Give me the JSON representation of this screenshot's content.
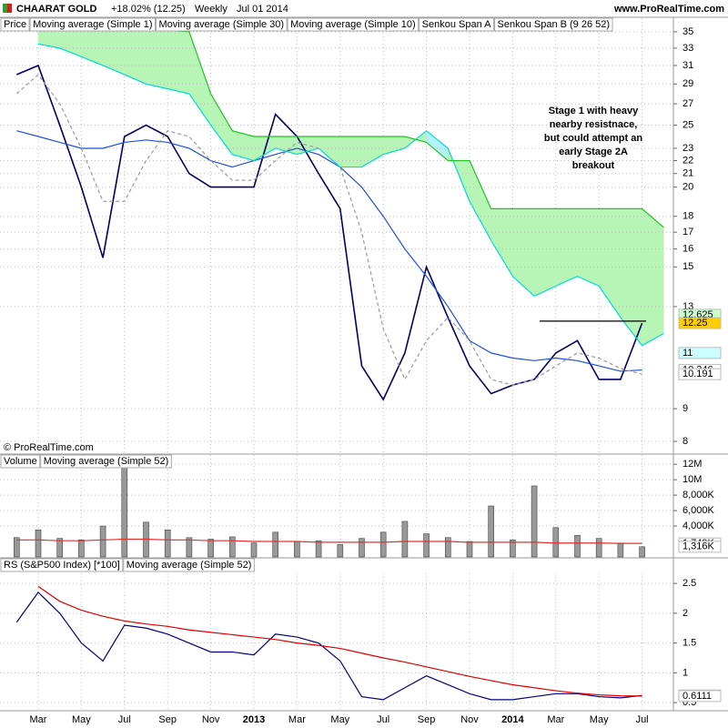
{
  "page": {
    "symbol": "CHAARAT GOLD",
    "change": "+18.02% (12.25)",
    "period": "Weekly",
    "date": "Jul 01 2014",
    "site": "www.ProRealTime.com",
    "copyright": "© ProRealTime.com"
  },
  "chart_data": [
    {
      "type": "line",
      "ylabel": "Price",
      "log_scale": true,
      "grid": true,
      "categories": [
        null,
        "Mar",
        null,
        "May",
        null,
        "Jul",
        null,
        "Sep",
        null,
        "Nov",
        null,
        "2013",
        null,
        "Mar",
        null,
        "May",
        null,
        "Jul",
        null,
        "Sep",
        null,
        "Nov",
        null,
        "2014",
        null,
        "Mar",
        null,
        "May",
        null,
        "Jul",
        null
      ],
      "ylim": [
        7.666,
        36.76
      ],
      "yticks": [
        8,
        9,
        13,
        15,
        16,
        17,
        18,
        20,
        21,
        22,
        23,
        25,
        27,
        29,
        31,
        33,
        35
      ],
      "series": [
        {
          "name": "Moving average (Simple 1)",
          "color": "#000066",
          "values": [
            30,
            31,
            25,
            20,
            15.5,
            24,
            25,
            24,
            21,
            20,
            20,
            20,
            26,
            24,
            21,
            18.5,
            10.5,
            9.3,
            11,
            15,
            12.5,
            10.5,
            9.5,
            9.8,
            10,
            11,
            11.5,
            10,
            10,
            12.25,
            null
          ]
        },
        {
          "name": "Moving average (Simple 30)",
          "color": "#1f4fe0",
          "values": [
            24.5,
            24,
            23.5,
            23,
            23,
            23.5,
            23.7,
            23.5,
            23,
            22,
            21.5,
            22,
            22.5,
            23,
            22.5,
            21.5,
            20,
            18,
            16,
            14.5,
            13,
            11.5,
            11,
            10.8,
            10.7,
            10.8,
            10.7,
            10.5,
            10.3,
            10.346,
            null
          ]
        },
        {
          "name": "Moving average (Simple 10)",
          "color": "#9a9a9a",
          "dash": true,
          "values": [
            28,
            30,
            27,
            23,
            19,
            19,
            22,
            24.5,
            24,
            22,
            20.5,
            20.5,
            22,
            23.5,
            23,
            21.5,
            17,
            12,
            10,
            11.5,
            12.5,
            11.5,
            10,
            9.8,
            10,
            10.5,
            11,
            10.8,
            10.4,
            10.191,
            null
          ]
        },
        {
          "name": "Senkou Span A",
          "color": "#00d8e0",
          "fill": "#b3f3f7",
          "values": [
            null,
            33.5,
            33,
            32,
            31,
            30,
            29,
            28.5,
            28,
            25,
            22.5,
            22,
            23,
            22.5,
            23,
            21.5,
            21.5,
            22.5,
            23,
            24.5,
            23,
            19,
            16.5,
            14.5,
            13.5,
            14,
            14.5,
            14,
            12.5,
            11.3,
            11.8
          ]
        },
        {
          "name": "Senkou Span B (9 26 52)",
          "color": "#22c322",
          "fill": "#b6f5b6",
          "values": [
            null,
            35.2,
            35.2,
            35.2,
            35.2,
            35.2,
            35.2,
            35.2,
            35,
            28,
            24.5,
            24,
            24,
            24,
            24,
            24,
            24,
            24,
            24,
            23.5,
            22,
            22,
            18.5,
            18.5,
            18.5,
            18.5,
            18.5,
            18.5,
            18.5,
            18.5,
            17.3
          ]
        }
      ],
      "tags": [
        {
          "value": 12.625,
          "color": "#22a022",
          "background": "#ccffcc"
        },
        {
          "value": 12.25,
          "color": "#000000",
          "background": "#ffcc00"
        },
        {
          "value": 11,
          "color": "#00c8d0",
          "background": "#ccffff"
        },
        {
          "value": 10.346,
          "color": "#1f4fe0",
          "background": "#ffffff"
        },
        {
          "value": 10.191,
          "color": "#888888",
          "background": "#ffffff"
        }
      ],
      "hline": 12.34,
      "annotation": [
        "Stage 1 with heavy",
        "nearby resistnace,",
        "but could attempt an",
        "early Stage 2A",
        "breakout"
      ]
    },
    {
      "type": "bar",
      "grid": true,
      "categories": [
        null,
        "Mar",
        null,
        "May",
        null,
        "Jul",
        null,
        "Sep",
        null,
        "Nov",
        null,
        "2013",
        null,
        "Mar",
        null,
        "May",
        null,
        "Jul",
        null,
        "Sep",
        null,
        "Nov",
        null,
        "2014",
        null,
        "Mar",
        null,
        "May",
        null,
        "Jul",
        null
      ],
      "ylim": [
        0,
        13200000
      ],
      "yticks": [
        {
          "value": 4000000,
          "label": "4,000K"
        },
        {
          "value": 6000000,
          "label": "6,000K"
        },
        {
          "value": 8000000,
          "label": "8,000K"
        },
        {
          "value": 10000000,
          "label": "10M"
        },
        {
          "value": 12000000,
          "label": "12M"
        }
      ],
      "series": [
        {
          "name": "Volume",
          "type": "bar",
          "color": "#999999",
          "values": [
            2500000,
            3500000,
            2400000,
            2200000,
            4000000,
            11800000,
            4500000,
            3500000,
            2500000,
            2300000,
            2600000,
            1800000,
            3200000,
            2000000,
            2100000,
            1600000,
            2400000,
            3200000,
            4600000,
            3000000,
            2500000,
            2000000,
            6600000,
            2200000,
            9200000,
            3800000,
            2800000,
            2400000,
            1800000,
            1316000,
            null
          ]
        },
        {
          "name": "Moving average (Simple 52)",
          "type": "line",
          "color": "#e03030",
          "values": [
            2200000,
            2200000,
            2100000,
            2100000,
            2200000,
            2300000,
            2300000,
            2200000,
            2200000,
            2100000,
            2100000,
            2000000,
            2000000,
            2000000,
            1900000,
            1900000,
            1900000,
            1900000,
            2000000,
            2000000,
            2000000,
            1900000,
            1900000,
            1900000,
            1900000,
            1800000,
            1800000,
            1800000,
            1750000,
            1749000,
            null
          ]
        }
      ],
      "tags": [
        {
          "value": 1749000,
          "label": "1,749K",
          "color": "#e03030",
          "background": "#ffffff"
        },
        {
          "value": 1316000,
          "label": "1,316K",
          "color": "#888888",
          "background": "#ffffff"
        }
      ]
    },
    {
      "type": "line",
      "grid": true,
      "categories": [
        null,
        "Mar",
        null,
        "May",
        null,
        "Jul",
        null,
        "Sep",
        null,
        "Nov",
        null,
        "2013",
        null,
        "Mar",
        null,
        "May",
        null,
        "Jul",
        null,
        "Sep",
        null,
        "Nov",
        null,
        "2014",
        null,
        "Mar",
        null,
        "May",
        null,
        "Jul",
        null
      ],
      "ylim": [
        0.38,
        2.67
      ],
      "yticks": [
        0.5,
        1,
        1.5,
        2,
        2.5
      ],
      "series": [
        {
          "name": "RS (S&P500 Index) [*100]",
          "color": "#000080",
          "values": [
            1.85,
            2.35,
            2.0,
            1.5,
            1.2,
            1.8,
            1.75,
            1.65,
            1.5,
            1.35,
            1.35,
            1.3,
            1.65,
            1.6,
            1.5,
            1.2,
            0.6,
            0.55,
            0.75,
            0.95,
            0.8,
            0.65,
            0.55,
            0.55,
            0.6,
            0.65,
            0.65,
            0.6,
            0.58,
            0.6208,
            null
          ]
        },
        {
          "name": "Moving average (Simple 52)",
          "color": "#e00000",
          "values": [
            null,
            2.45,
            2.2,
            2.05,
            1.95,
            1.87,
            1.82,
            1.78,
            1.72,
            1.68,
            1.64,
            1.6,
            1.56,
            1.5,
            1.46,
            1.41,
            1.33,
            1.25,
            1.18,
            1.1,
            1.02,
            0.94,
            0.87,
            0.8,
            0.75,
            0.7,
            0.66,
            0.63,
            0.615,
            0.6111,
            null
          ]
        }
      ],
      "tags": [
        {
          "value": 0.6208,
          "color": "#000080",
          "background": "#ffffff"
        },
        {
          "value": 0.6111,
          "color": "#e00000",
          "background": "#ffffff"
        }
      ]
    }
  ]
}
